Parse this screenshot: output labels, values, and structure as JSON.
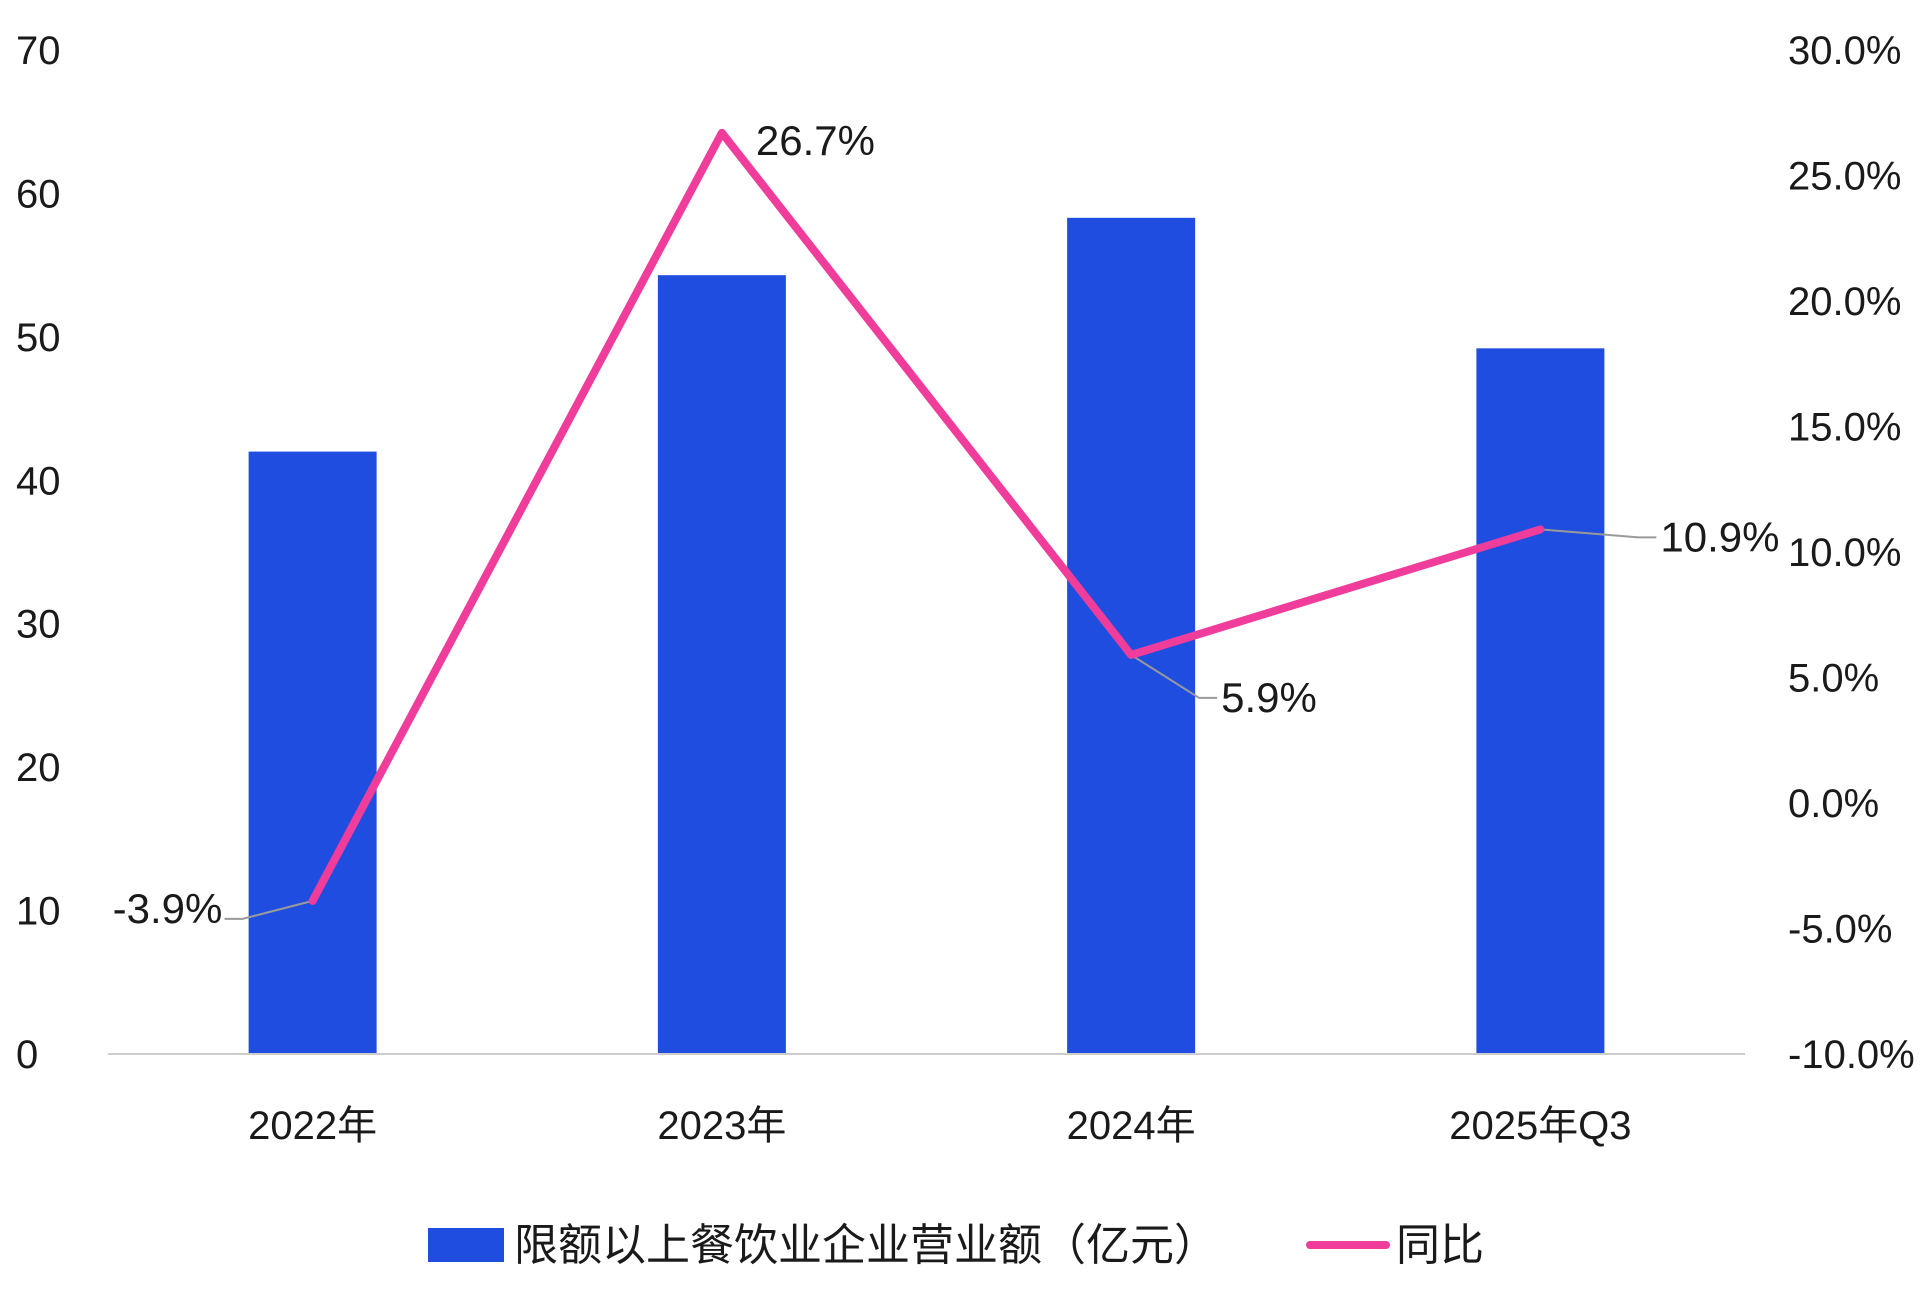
{
  "chart_data": {
    "type": "bar",
    "categories": [
      "2022年",
      "2023年",
      "2024年",
      "2025年Q3"
    ],
    "series": [
      {
        "name": "限额以上餐饮业企业营业额（亿元）",
        "type": "bar",
        "axis": "left",
        "values": [
          42.0,
          54.3,
          58.3,
          49.2
        ]
      },
      {
        "name": "同比",
        "type": "line",
        "axis": "right",
        "values": [
          -3.9,
          26.7,
          5.9,
          10.9
        ],
        "labels": [
          "-3.9%",
          "26.7%",
          "5.9%",
          "10.9%"
        ]
      }
    ],
    "y_left": {
      "range": [
        0,
        70
      ],
      "ticks": [
        "0",
        "10",
        "20",
        "30",
        "40",
        "50",
        "60",
        "70"
      ]
    },
    "y_right": {
      "range": [
        -10,
        30
      ],
      "ticks": [
        "-10.0%",
        "-5.0%",
        "0.0%",
        "5.0%",
        "10.0%",
        "15.0%",
        "20.0%",
        "25.0%",
        "30.0%"
      ]
    },
    "legend_position": "bottom",
    "grid": false,
    "colors": {
      "bar": "#1f4de0",
      "line": "#f03c9a",
      "axis": "#cccccc",
      "leader": "#9a9a9a"
    }
  }
}
